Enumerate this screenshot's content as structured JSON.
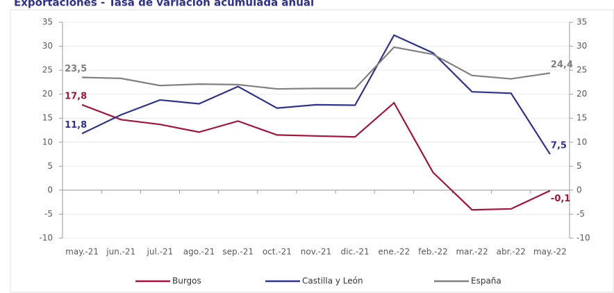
{
  "chart_data": {
    "type": "line",
    "title": "Exportaciones - Tasa de variación acumulada anual",
    "categories": [
      "may.-21",
      "jun.-21",
      "jul.-21",
      "ago.-21",
      "sep.-21",
      "oct.-21",
      "nov.-21",
      "dic.-21",
      "ene.-22",
      "feb.-22",
      "mar.-22",
      "abr.-22",
      "may.-22"
    ],
    "series": [
      {
        "name": "Burgos",
        "color": "#a6113e",
        "values": [
          17.8,
          14.7,
          13.7,
          12.1,
          14.4,
          11.5,
          11.3,
          11.1,
          18.2,
          3.7,
          -4.1,
          -3.9,
          -0.1
        ],
        "value_labels": [
          "17,8",
          null,
          null,
          null,
          null,
          null,
          null,
          null,
          null,
          null,
          null,
          null,
          "-0,1"
        ]
      },
      {
        "name": "Castilla y León",
        "color": "#2e3192",
        "values": [
          11.8,
          15.7,
          18.8,
          18.0,
          21.6,
          17.1,
          17.8,
          17.7,
          32.3,
          28.6,
          20.5,
          20.2,
          7.5
        ],
        "value_labels": [
          "11,8",
          null,
          null,
          null,
          null,
          null,
          null,
          null,
          null,
          null,
          null,
          null,
          "7,5"
        ]
      },
      {
        "name": "España",
        "color": "#808080",
        "values": [
          23.5,
          23.3,
          21.8,
          22.1,
          22.0,
          21.1,
          21.2,
          21.2,
          29.8,
          28.3,
          23.9,
          23.2,
          24.4
        ],
        "value_labels": [
          "23,5",
          null,
          null,
          null,
          null,
          null,
          null,
          null,
          null,
          null,
          null,
          null,
          "24,4"
        ]
      }
    ],
    "ylim": [
      -10,
      35
    ],
    "yticks": [
      -10,
      -5,
      0,
      5,
      10,
      15,
      20,
      25,
      30,
      35
    ],
    "y2lim": [
      -10,
      35
    ],
    "y2ticks": [
      -10,
      -5,
      0,
      5,
      10,
      15,
      20,
      25,
      30,
      35
    ],
    "grid": true,
    "legend": "bottom"
  }
}
